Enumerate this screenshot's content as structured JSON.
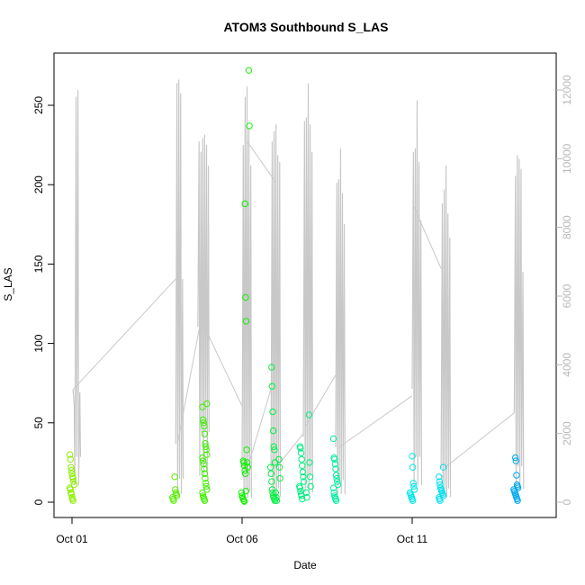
{
  "chart_data": {
    "type": "scatter",
    "title": "ATOM3 Southbound S_LAS",
    "xlabel": "Date",
    "ylabel": "S_LAS",
    "x_ticks": [
      {
        "label": "Oct 01",
        "day": 1
      },
      {
        "label": "Oct 06",
        "day": 6
      },
      {
        "label": "Oct 11",
        "day": 11
      }
    ],
    "xlim_days": [
      1,
      14.7
    ],
    "ylim": [
      0,
      275
    ],
    "y_ticks": [
      0,
      50,
      100,
      150,
      200,
      250
    ],
    "y2lim": [
      0,
      12400
    ],
    "y2_ticks": [
      0,
      2000,
      4000,
      6000,
      8000,
      10000,
      12000
    ],
    "grid": false,
    "legend": "none",
    "secondary_line_color": "#c8c8c8",
    "bursts": [
      {
        "day": 1.0,
        "color": "#8cf000",
        "values": [
          30,
          27,
          22,
          20,
          18,
          16,
          15,
          13,
          11,
          9,
          8,
          6,
          5,
          3,
          2,
          1
        ]
      },
      {
        "day": 4.02,
        "color": "#55f000",
        "values": [
          16,
          8,
          6,
          5,
          4,
          3,
          2,
          1
        ]
      },
      {
        "day": 4.9,
        "color": "#3cf000",
        "values": [
          62,
          60,
          52,
          50,
          48,
          43,
          37,
          35,
          33,
          30,
          28,
          26,
          24,
          21,
          18,
          15,
          12,
          10,
          8,
          6,
          4,
          3,
          2,
          1
        ]
      },
      {
        "day": 6.05,
        "color": "#10f000",
        "values": [
          26,
          25,
          23,
          20,
          18,
          7,
          6,
          4,
          3,
          2,
          1,
          0.5
        ]
      },
      {
        "day": 6.15,
        "color": "#10f000",
        "values": [
          272,
          237,
          188,
          129,
          114,
          33,
          25,
          22
        ]
      },
      {
        "day": 6.9,
        "color": "#00f040",
        "values": [
          85,
          73,
          57,
          45,
          35,
          33,
          25,
          22,
          18,
          13,
          8,
          6,
          4,
          3,
          2,
          1
        ]
      },
      {
        "day": 7.05,
        "color": "#00f040",
        "values": [
          27,
          22,
          15,
          6,
          3,
          1
        ]
      },
      {
        "day": 7.75,
        "color": "#00f080",
        "values": [
          35,
          34,
          31,
          27,
          23,
          19,
          16,
          13,
          10,
          9,
          7,
          5,
          4,
          2
        ]
      },
      {
        "day": 7.95,
        "color": "#00f080",
        "values": [
          55,
          25,
          16,
          10,
          6,
          3
        ]
      },
      {
        "day": 8.75,
        "color": "#00f0a0",
        "values": [
          40,
          28,
          27,
          24,
          21,
          17,
          15,
          13,
          11,
          9,
          6,
          4,
          3,
          2,
          1
        ]
      },
      {
        "day": 11.0,
        "color": "#00e8e8",
        "values": [
          29,
          22,
          12,
          10,
          8,
          6,
          5,
          4,
          3,
          2,
          1
        ]
      },
      {
        "day": 11.85,
        "color": "#00e0f0",
        "values": [
          22,
          16,
          13,
          11,
          9,
          8,
          7,
          6,
          5,
          4,
          3,
          2,
          1
        ]
      },
      {
        "day": 14.05,
        "color": "#00a8f0",
        "values": [
          28,
          26,
          17,
          11,
          10,
          9,
          8,
          7,
          6,
          5,
          4,
          3,
          2,
          1
        ]
      }
    ],
    "secondary_series": {
      "name": "",
      "spikes": [
        {
          "day": 1.03,
          "base": 3300,
          "peaks": [
            2800,
            11800,
            12000,
            3200
          ]
        },
        {
          "day": 4.05,
          "base": 1700,
          "peaks": [
            12200,
            12300,
            11900,
            6500
          ]
        },
        {
          "day": 4.7,
          "base": 5100,
          "peaks": [
            10500,
            10200,
            10600,
            10700,
            10400,
            9800
          ]
        },
        {
          "day": 6.0,
          "base": 800,
          "peaks": [
            10400,
            11800,
            12100,
            10900,
            9800
          ]
        },
        {
          "day": 6.85,
          "base": 1000,
          "peaks": [
            10500,
            10800,
            11000,
            10100,
            9900
          ]
        },
        {
          "day": 7.8,
          "base": 1900,
          "peaks": [
            11100,
            11200,
            12200,
            11000,
            10200
          ]
        },
        {
          "day": 8.75,
          "base": 1600,
          "peaks": [
            9300,
            9400,
            10300,
            9000,
            8100
          ]
        },
        {
          "day": 11.0,
          "base": 3300,
          "peaks": [
            10200,
            10300,
            11700,
            9900,
            8200
          ]
        },
        {
          "day": 11.85,
          "base": 1000,
          "peaks": [
            8700,
            9100,
            9800,
            8400,
            7700
          ]
        },
        {
          "day": 14.0,
          "base": 2600,
          "peaks": [
            9500,
            10100,
            10000,
            9700,
            6700
          ]
        }
      ],
      "connectors": [
        [
          1.05,
          3300,
          4.05,
          6500
        ],
        [
          4.1,
          1700,
          4.75,
          5100
        ],
        [
          4.75,
          5400,
          6.0,
          2800
        ],
        [
          6.1,
          800,
          6.85,
          3300
        ],
        [
          6.15,
          10500,
          7.0,
          9300
        ],
        [
          7.0,
          1000,
          7.8,
          2000
        ],
        [
          7.85,
          2200,
          8.75,
          3700
        ],
        [
          8.85,
          1600,
          11.0,
          3100
        ],
        [
          11.05,
          8600,
          11.85,
          6800
        ],
        [
          11.95,
          1000,
          14.0,
          2600
        ]
      ]
    }
  }
}
